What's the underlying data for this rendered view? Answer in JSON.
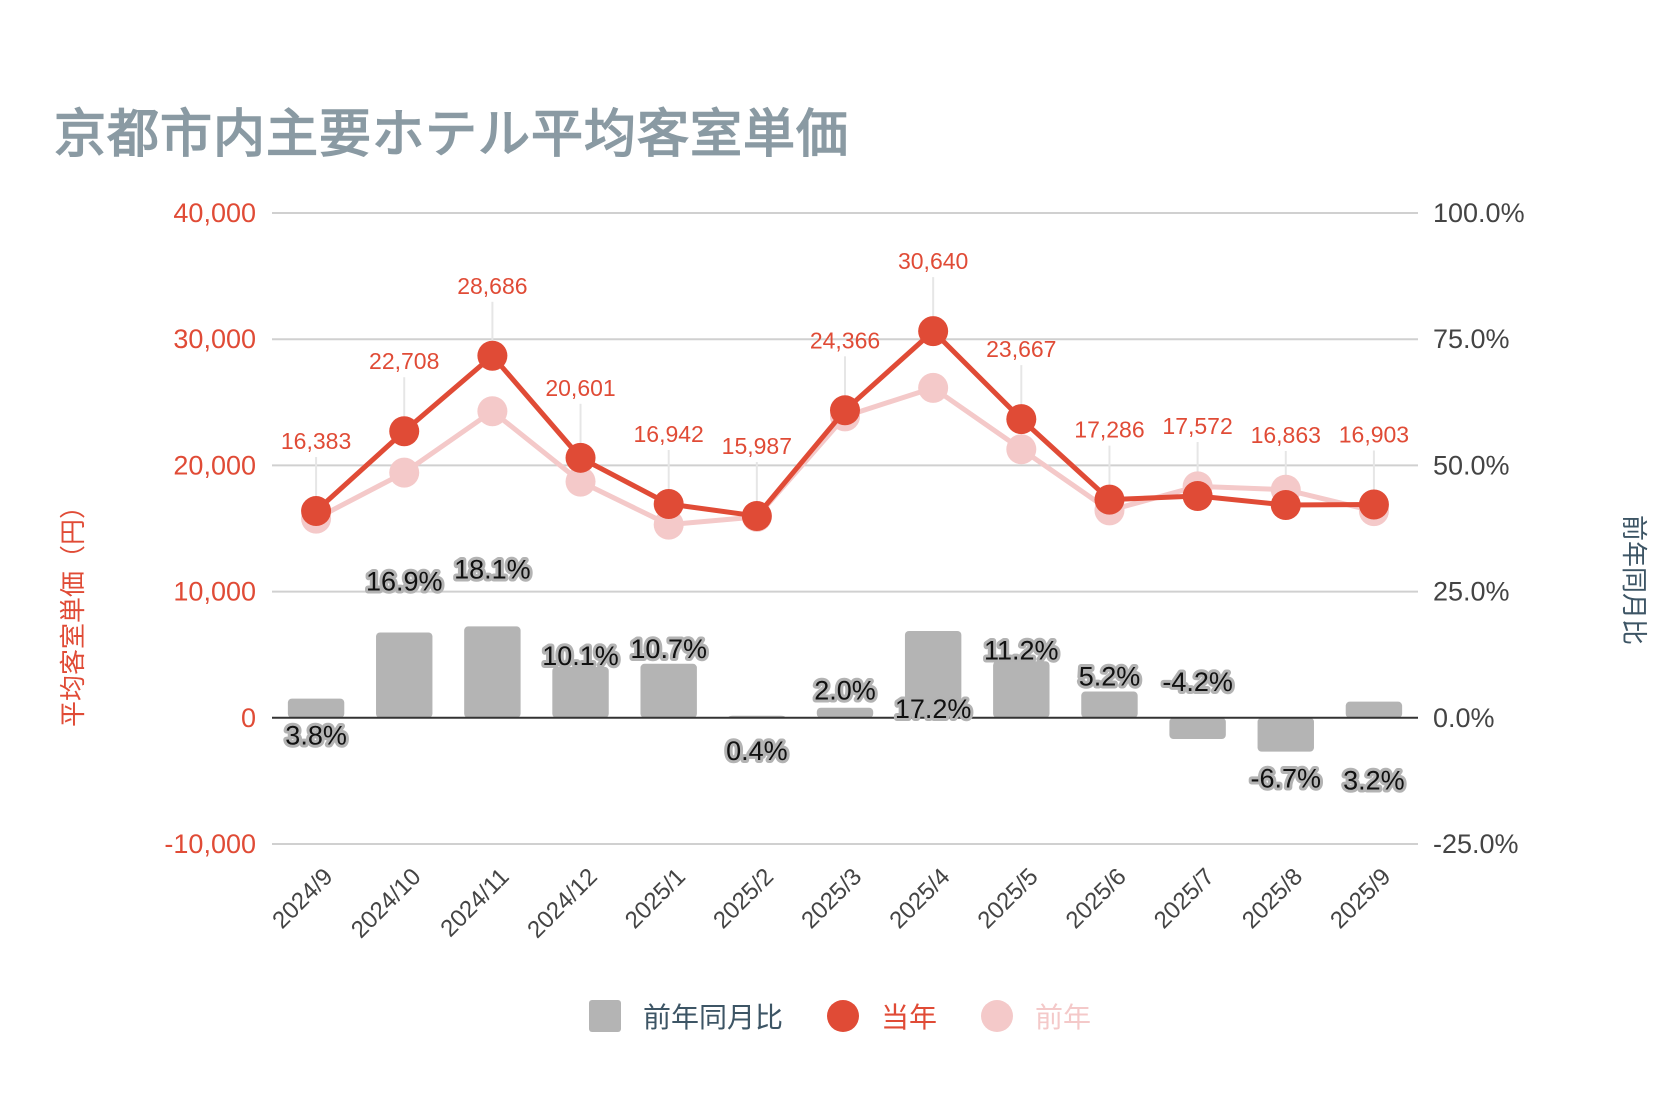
{
  "chart_data": {
    "type": "combo-bar-line",
    "title": "京都市内主要ホテル平均客室単価",
    "categories": [
      "2024/9",
      "2024/10",
      "2024/11",
      "2024/12",
      "2025/1",
      "2025/2",
      "2025/3",
      "2025/4",
      "2025/5",
      "2025/6",
      "2025/7",
      "2025/8",
      "2025/9"
    ],
    "left_axis": {
      "label": "平均客室単価（円）",
      "range": [
        -10000,
        40000
      ],
      "ticks": [
        40000,
        30000,
        20000,
        10000,
        0,
        -10000
      ],
      "tick_labels": [
        "40,000",
        "30,000",
        "20,000",
        "10,000",
        "0",
        "-10,000"
      ]
    },
    "right_axis": {
      "label": "前年同月比",
      "range": [
        -25,
        100
      ],
      "ticks": [
        100,
        75,
        50,
        25,
        0,
        -25
      ],
      "tick_labels": [
        "100.0%",
        "75.0%",
        "50.0%",
        "25.0%",
        "0.0%",
        "-25.0%"
      ]
    },
    "grid": true,
    "legend_position": "bottom",
    "series": [
      {
        "name": "前年同月比",
        "type": "bar",
        "axis": "right",
        "color": "#b4b4b4",
        "values": [
          3.8,
          16.9,
          18.1,
          10.1,
          10.7,
          0.4,
          2.0,
          17.2,
          11.2,
          5.2,
          -4.2,
          -6.7,
          3.2
        ],
        "labels": [
          "3.8%",
          "16.9%",
          "18.1%",
          "10.1%",
          "10.7%",
          "0.4%",
          "2.0%",
          "17.2%",
          "11.2%",
          "5.2%",
          "-4.2%",
          "-6.7%",
          "3.2%"
        ]
      },
      {
        "name": "当年",
        "type": "line",
        "axis": "left",
        "color": "#e04b36",
        "values": [
          16383,
          22708,
          28686,
          20601,
          16942,
          15987,
          24366,
          30640,
          23667,
          17286,
          17572,
          16863,
          16903
        ],
        "labels": [
          "16,383",
          "22,708",
          "28,686",
          "20,601",
          "16,942",
          "15,987",
          "24,366",
          "30,640",
          "23,667",
          "17,286",
          "17,572",
          "16,863",
          "16,903"
        ]
      },
      {
        "name": "前年",
        "type": "line",
        "axis": "left",
        "color": "#f4c9c9",
        "values": [
          15783,
          19425,
          24290,
          18711,
          15304,
          15923,
          23888,
          26143,
          21283,
          16432,
          18342,
          18074,
          16379
        ]
      }
    ]
  }
}
